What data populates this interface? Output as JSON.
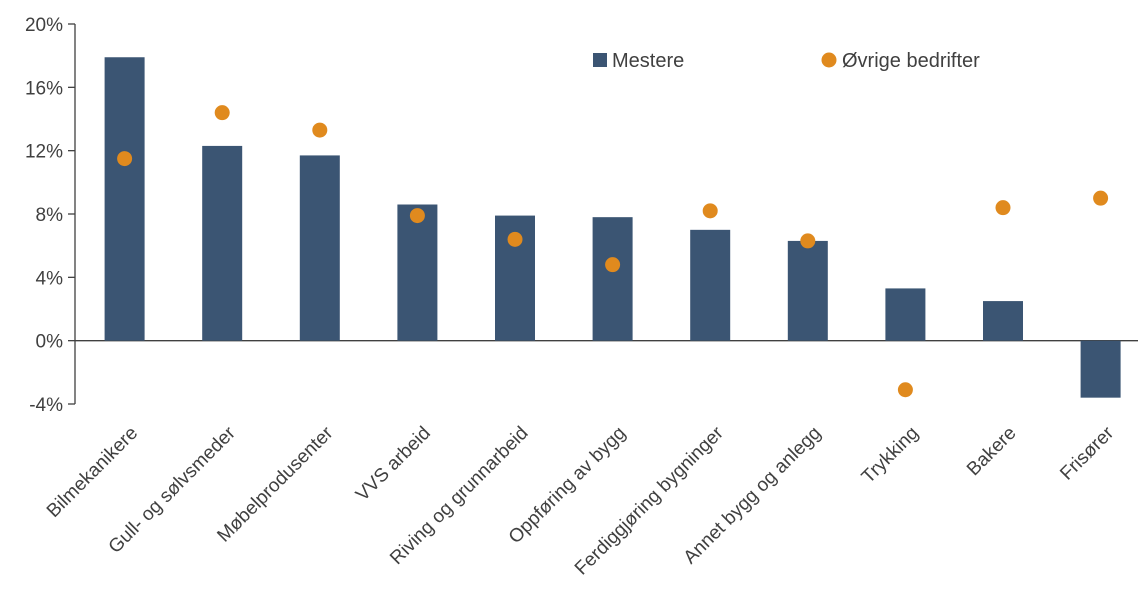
{
  "chart_data": {
    "type": "bar",
    "title": "",
    "xlabel": "",
    "ylabel": "",
    "categories": [
      "Bilmekanikere",
      "Gull- og sølvsmeder",
      "Møbelprodusenter",
      "VVS arbeid",
      "Riving og grunnarbeid",
      "Oppføring av bygg",
      "Ferdiggjøring bygninger",
      "Annet bygg og anlegg",
      "Trykking",
      "Bakere",
      "Frisører"
    ],
    "series": [
      {
        "name": "Mestere",
        "kind": "bar",
        "color": "#3B5573",
        "values": [
          17.9,
          12.3,
          11.7,
          8.6,
          7.9,
          7.8,
          7.0,
          6.3,
          3.3,
          2.5,
          -3.6
        ]
      },
      {
        "name": "Øvrige bedrifter",
        "kind": "marker",
        "color": "#E08A1E",
        "values": [
          11.5,
          14.4,
          13.3,
          7.9,
          6.4,
          4.8,
          8.2,
          6.3,
          -3.1,
          8.4,
          9.0
        ]
      }
    ],
    "ylim": [
      -4,
      20
    ],
    "yticks": [
      -4,
      0,
      4,
      8,
      12,
      16,
      20
    ],
    "ytick_labels": [
      "-4%",
      "0%",
      "4%",
      "8%",
      "12%",
      "16%",
      "20%"
    ],
    "legend": "top-right",
    "grid": false
  }
}
